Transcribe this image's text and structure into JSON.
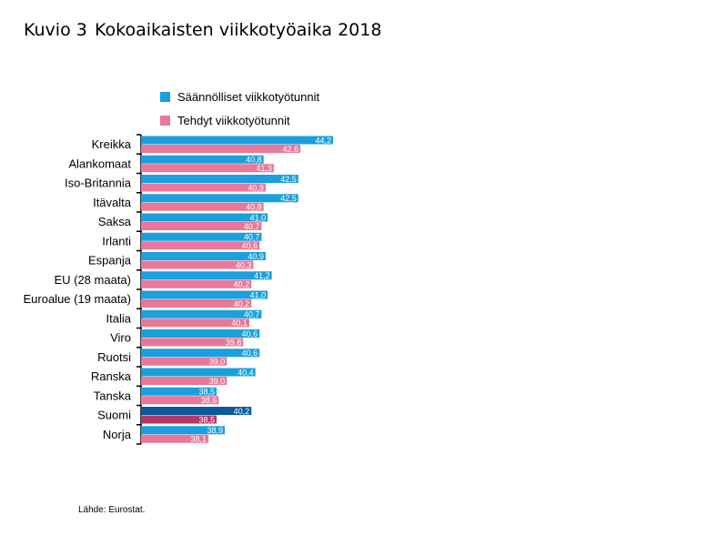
{
  "title": {
    "number": "Kuvio 3",
    "text": "Kokoaikaisten viikkotyöaika 2018"
  },
  "legend": [
    {
      "label": "Säännölliset viikkotyötunnit",
      "color": "#1aa0dc"
    },
    {
      "label": "Tehdyt viikkotyötunnit",
      "color": "#e8789a"
    }
  ],
  "source": "Lähde: Eurostat.",
  "chart_data": {
    "type": "bar",
    "orientation": "horizontal",
    "categories": [
      "Kreikka",
      "Alankomaat",
      "Iso-Britannia",
      "Itävalta",
      "Saksa",
      "Irlanti",
      "Espanja",
      "EU (28 maata)",
      "Euroalue (19 maata)",
      "Italia",
      "Viro",
      "Ruotsi",
      "Ranska",
      "Tanska",
      "Suomi",
      "Norja"
    ],
    "series": [
      {
        "name": "Säännölliset viikkotyötunnit",
        "color": "#1aa0dc",
        "values": [
          44.2,
          40.8,
          42.5,
          42.5,
          41.0,
          40.7,
          40.9,
          41.2,
          41.0,
          40.7,
          40.6,
          40.6,
          40.4,
          38.5,
          40.2,
          38.9
        ],
        "labels": [
          "44,2",
          "40,8",
          "42,5",
          "42,5",
          "41,0",
          "40,7",
          "40,9",
          "41,2",
          "41,0",
          "40,7",
          "40,6",
          "40,6",
          "40,4",
          "38,5",
          "40,2",
          "38,9"
        ]
      },
      {
        "name": "Tehdyt viikkotyötunnit",
        "color": "#e8789a",
        "values": [
          42.6,
          41.3,
          40.9,
          40.8,
          40.7,
          40.6,
          40.3,
          40.2,
          40.2,
          40.1,
          39.8,
          39.0,
          39.0,
          38.6,
          38.5,
          38.1
        ],
        "labels": [
          "42,6",
          "41,3",
          "40,9",
          "40,8",
          "40,7",
          "40,6",
          "40,3",
          "40,2",
          "40,2",
          "40,1",
          "39,8",
          "39,0",
          "39,0",
          "38,6",
          "38,5",
          "38,1"
        ]
      }
    ],
    "highlight": {
      "category": "Suomi",
      "colors": [
        "#0a5a9c",
        "#b3376a"
      ]
    },
    "xlim": [
      34.8,
      44.2
    ],
    "grid": false,
    "legend_position": "top"
  }
}
